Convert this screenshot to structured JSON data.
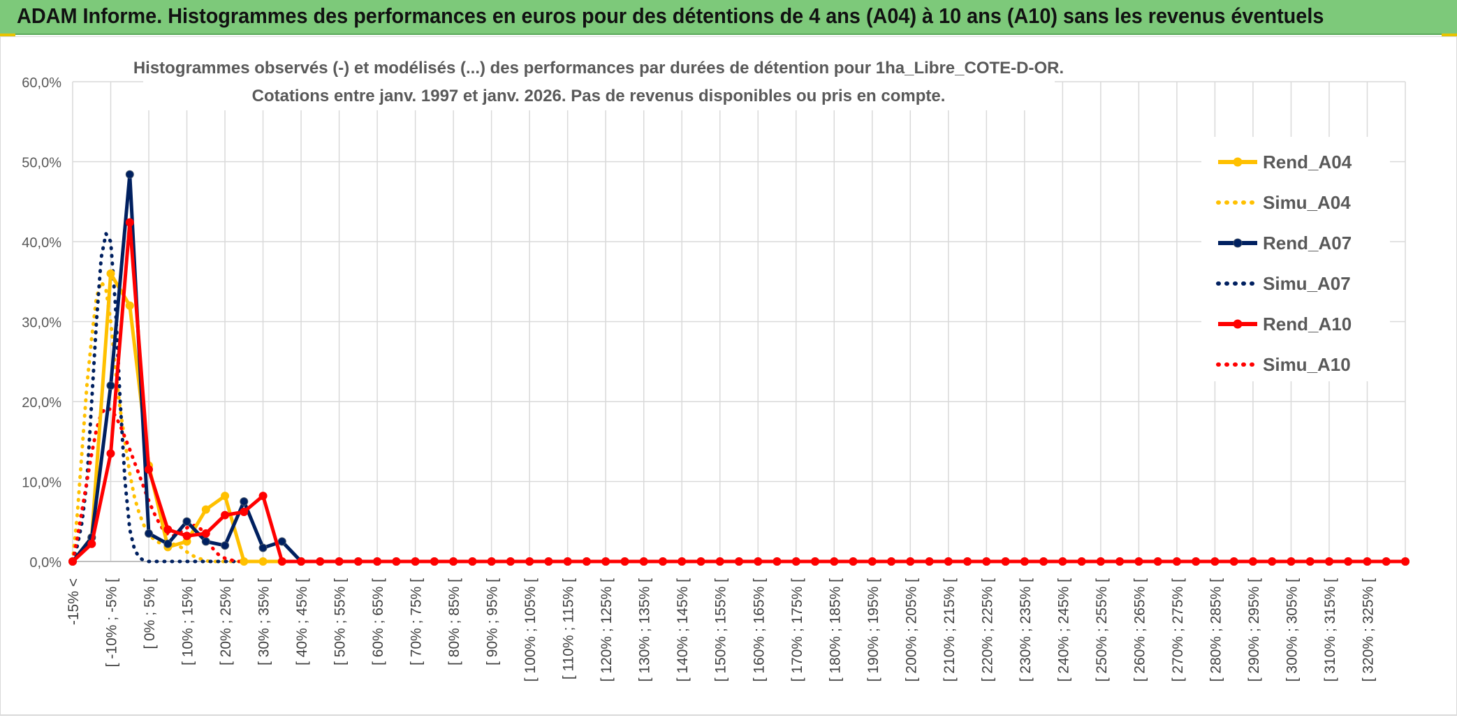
{
  "banner": {
    "title": "ADAM Informe. Histogrammes des performances en euros pour des détentions de 4 ans (A04) à 10 ans (A10) sans les revenus éventuels"
  },
  "colors": {
    "banner_bg": "#7dc97a",
    "accent": "#e8c300",
    "A04": "#ffc000",
    "A07": "#002060",
    "A10": "#ff0000",
    "grid": "#d9d9d9"
  },
  "chart_data": {
    "type": "line",
    "title_line1": "Histogrammes observés (-) et modélisés (...) des performances par durées de détention pour 1ha_Libre_COTE-D-OR.",
    "title_line2": "Cotations entre janv. 1997 et janv. 2026. Pas de revenus disponibles ou pris en compte.",
    "xlabel": "",
    "ylabel": "",
    "ylim": [
      0,
      0.6
    ],
    "yticks": [
      "0,0%",
      "10,0%",
      "20,0%",
      "30,0%",
      "40,0%",
      "50,0%",
      "60,0%"
    ],
    "grid": true,
    "legend_position": "right",
    "category_labels": [
      "-15% <",
      "[ -10% ; -5% [",
      "[ 0% ; 5% [",
      "[ 10% ; 15% [",
      "[ 20% ; 25% [",
      "[ 30% ; 35% [",
      "[ 40% ; 45% [",
      "[ 50% ; 55% [",
      "[ 60% ; 65% [",
      "[ 70% ; 75% [",
      "[ 80% ; 85% [",
      "[ 90% ; 95% [",
      "[ 100% ; 105% [",
      "[ 110% ; 115% [",
      "[ 120% ; 125% [",
      "[ 130% ; 135% [",
      "[ 140% ; 145% [",
      "[ 150% ; 155% [",
      "[ 160% ; 165% [",
      "[ 170% ; 175% [",
      "[ 180% ; 185% [",
      "[ 190% ; 195% [",
      "[ 200% ; 205% [",
      "[ 210% ; 215% [",
      "[ 220% ; 225% [",
      "[ 230% ; 235% [",
      "[ 240% ; 245% [",
      "[ 250% ; 255% [",
      "[ 260% ; 265% [",
      "[ 270% ; 275% [",
      "[ 280% ; 285% [",
      "[ 290% ; 295% [",
      "[ 300% ; 305% [",
      "[ 310% ; 315% [",
      "[ 320% ; 325% ["
    ],
    "observed_x": [
      0,
      1,
      2,
      3,
      4,
      5,
      6,
      7,
      8,
      9,
      10,
      11,
      12,
      13,
      14,
      15,
      16,
      17,
      18,
      19,
      20,
      21,
      22,
      23,
      24,
      25,
      26,
      27,
      28,
      29,
      30,
      31,
      32,
      33,
      34,
      35,
      36,
      37,
      38,
      39,
      40,
      41,
      42,
      43,
      44,
      45,
      46,
      47,
      48,
      49,
      50,
      51,
      52,
      53,
      54,
      55,
      56,
      57,
      58,
      59,
      60,
      61,
      62,
      63,
      64,
      65,
      66,
      67,
      68,
      69,
      70
    ],
    "simulated_x": [
      0,
      0.25,
      0.5,
      0.75,
      1,
      1.25,
      1.5,
      1.75,
      2,
      2.25,
      2.5,
      2.75,
      3,
      3.25,
      3.5,
      3.75,
      4,
      4.25,
      4.5,
      4.75,
      5,
      5.25,
      5.5,
      5.75,
      6,
      6.25,
      6.5,
      6.75,
      7,
      7.25,
      7.5,
      7.75,
      8,
      8.25,
      8.5,
      8.75,
      9,
      9.25,
      9.5,
      9.75,
      10,
      10.25,
      10.5,
      10.75,
      11,
      11.25,
      11.5,
      11.75,
      12
    ],
    "series": [
      {
        "name": "Rend_A04",
        "kind": "observed",
        "color": "#ffc000",
        "values": [
          0.0,
          0.03,
          0.36,
          0.32,
          0.12,
          0.018,
          0.025,
          0.065,
          0.082,
          0.0,
          0.0,
          0.0,
          0.0,
          0.0,
          0.0,
          0.0,
          0.0,
          0.0,
          0.0,
          0.0,
          0.0,
          0.0,
          0.0,
          0.0,
          0.0,
          0.0,
          0.0,
          0.0,
          0.0,
          0.0,
          0.0,
          0.0,
          0.0,
          0.0,
          0.0,
          0.0,
          0.0,
          0.0,
          0.0,
          0.0,
          0.0,
          0.0,
          0.0,
          0.0,
          0.0,
          0.0,
          0.0,
          0.0,
          0.0,
          0.0,
          0.0,
          0.0,
          0.0,
          0.0,
          0.0,
          0.0,
          0.0,
          0.0,
          0.0,
          0.0,
          0.0,
          0.0,
          0.0,
          0.0,
          0.0,
          0.0,
          0.0,
          0.0,
          0.0,
          0.0,
          0.0
        ]
      },
      {
        "name": "Simu_A04",
        "kind": "simulated",
        "color": "#ffc000",
        "values": [
          0.0,
          0.06,
          0.14,
          0.22,
          0.28,
          0.33,
          0.35,
          0.34,
          0.3,
          0.24,
          0.19,
          0.15,
          0.11,
          0.08,
          0.06,
          0.045,
          0.035,
          0.028,
          0.024,
          0.022,
          0.022,
          0.022,
          0.02,
          0.017,
          0.012,
          0.008,
          0.005,
          0.003,
          0.001,
          0.0,
          0.0,
          0.0,
          0.0,
          0.0,
          0.0,
          0.0,
          0.0,
          0.0,
          0.0,
          0.0,
          0.0,
          0.0,
          0.0,
          0.0,
          0.0,
          0.0,
          0.0,
          0.0,
          0.0
        ]
      },
      {
        "name": "Rend_A07",
        "kind": "observed",
        "color": "#002060",
        "values": [
          0.0,
          0.03,
          0.22,
          0.484,
          0.035,
          0.022,
          0.05,
          0.025,
          0.02,
          0.075,
          0.017,
          0.025,
          0.0,
          0.0,
          0.0,
          0.0,
          0.0,
          0.0,
          0.0,
          0.0,
          0.0,
          0.0,
          0.0,
          0.0,
          0.0,
          0.0,
          0.0,
          0.0,
          0.0,
          0.0,
          0.0,
          0.0,
          0.0,
          0.0,
          0.0,
          0.0,
          0.0,
          0.0,
          0.0,
          0.0,
          0.0,
          0.0,
          0.0,
          0.0,
          0.0,
          0.0,
          0.0,
          0.0,
          0.0,
          0.0,
          0.0,
          0.0,
          0.0,
          0.0,
          0.0,
          0.0,
          0.0,
          0.0,
          0.0,
          0.0,
          0.0,
          0.0,
          0.0,
          0.0,
          0.0,
          0.0,
          0.0,
          0.0,
          0.0,
          0.0,
          0.0
        ]
      },
      {
        "name": "Simu_A07",
        "kind": "simulated",
        "color": "#002060",
        "values": [
          0.0,
          0.02,
          0.05,
          0.1,
          0.2,
          0.3,
          0.38,
          0.41,
          0.4,
          0.32,
          0.2,
          0.1,
          0.04,
          0.015,
          0.005,
          0.001,
          0.0,
          0.0,
          0.0,
          0.0,
          0.0,
          0.0,
          0.0,
          0.0,
          0.0,
          0.0,
          0.0,
          0.0,
          0.0,
          0.0,
          0.0,
          0.0,
          0.0,
          0.0,
          0.0,
          0.0,
          0.0,
          0.0,
          0.0,
          0.0,
          0.0,
          0.0,
          0.0,
          0.0,
          0.0,
          0.0,
          0.0,
          0.0,
          0.0
        ]
      },
      {
        "name": "Rend_A10",
        "kind": "observed",
        "color": "#ff0000",
        "values": [
          0.0,
          0.022,
          0.135,
          0.424,
          0.115,
          0.04,
          0.032,
          0.035,
          0.058,
          0.062,
          0.082,
          0.0,
          0.0,
          0.0,
          0.0,
          0.0,
          0.0,
          0.0,
          0.0,
          0.0,
          0.0,
          0.0,
          0.0,
          0.0,
          0.0,
          0.0,
          0.0,
          0.0,
          0.0,
          0.0,
          0.0,
          0.0,
          0.0,
          0.0,
          0.0,
          0.0,
          0.0,
          0.0,
          0.0,
          0.0,
          0.0,
          0.0,
          0.0,
          0.0,
          0.0,
          0.0,
          0.0,
          0.0,
          0.0,
          0.0,
          0.0,
          0.0,
          0.0,
          0.0,
          0.0,
          0.0,
          0.0,
          0.0,
          0.0,
          0.0,
          0.0,
          0.0,
          0.0,
          0.0,
          0.0,
          0.0,
          0.0,
          0.0,
          0.0,
          0.0,
          0.0
        ]
      },
      {
        "name": "Simu_A10",
        "kind": "simulated",
        "color": "#ff0000",
        "values": [
          0.0,
          0.03,
          0.065,
          0.1,
          0.135,
          0.165,
          0.185,
          0.192,
          0.19,
          0.182,
          0.17,
          0.155,
          0.14,
          0.124,
          0.108,
          0.092,
          0.076,
          0.062,
          0.05,
          0.04,
          0.034,
          0.032,
          0.034,
          0.038,
          0.042,
          0.045,
          0.045,
          0.04,
          0.03,
          0.02,
          0.012,
          0.007,
          0.004,
          0.002,
          0.001,
          0.0,
          0.0,
          0.0,
          0.0,
          0.0,
          0.0,
          0.0,
          0.0,
          0.0,
          0.0,
          0.0,
          0.0,
          0.0,
          0.0
        ]
      }
    ]
  }
}
